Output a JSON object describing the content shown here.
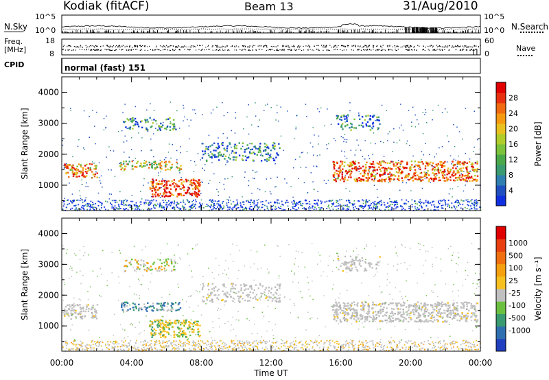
{
  "header": {
    "station": "Kodiak (fitACF)",
    "beam": "Beam 13",
    "date": "31/Aug/2010"
  },
  "noise_panel": {
    "left_label": "N.Sky",
    "right_label": "N.Search",
    "left_ticks": [
      "10^5",
      "10^0"
    ],
    "right_ticks": [
      "10^5",
      "10^0"
    ]
  },
  "freq_panel": {
    "left_label_line1": "Freq.",
    "left_label_line2": "[MHz]",
    "right_label": "Nave",
    "left_ticks": [
      "18",
      "8"
    ],
    "right_ticks": [
      "60",
      "0"
    ]
  },
  "cpid": {
    "label": "CPID",
    "value": "normal (fast) 151"
  },
  "chart_data": [
    {
      "type": "heatmap",
      "parameter": "power",
      "ylabel": "Slant Range [km]",
      "xlabel": "",
      "x_ticks": [
        "00:00",
        "04:00",
        "08:00",
        "12:00",
        "16:00",
        "20:00",
        "00:00"
      ],
      "y_ticks": [
        "1000",
        "2000",
        "3000",
        "4000"
      ],
      "ylim": [
        180,
        4500
      ],
      "xlim_hours": [
        0,
        24
      ],
      "colorbar": {
        "label": "Power [dB]",
        "ticks": [
          "4",
          "8",
          "12",
          "16",
          "20",
          "24",
          "28"
        ],
        "colors": [
          "#1030e0",
          "#2050c0",
          "#2f7fb0",
          "#3a9a70",
          "#4aa84a",
          "#7cc23a",
          "#b0cc2a",
          "#e8c020",
          "#f59a10",
          "#f06a10",
          "#e83010",
          "#e00000"
        ]
      },
      "scatter_regions": [
        {
          "name": "A",
          "hours": [
            0.1,
            2.0
          ],
          "range_km": [
            1250,
            1720
          ],
          "intensity": 0.7
        },
        {
          "name": "B",
          "hours": [
            3.3,
            6.8
          ],
          "range_km": [
            1500,
            1800
          ],
          "intensity": 0.55
        },
        {
          "name": "C",
          "hours": [
            5.0,
            7.9
          ],
          "range_km": [
            650,
            1220
          ],
          "intensity": 0.9
        },
        {
          "name": "D",
          "hours": [
            8.0,
            12.5
          ],
          "range_km": [
            1800,
            2400
          ],
          "intensity": 0.25
        },
        {
          "name": "E",
          "hours": [
            3.5,
            6.5
          ],
          "range_km": [
            2800,
            3200
          ],
          "intensity": 0.3
        },
        {
          "name": "F",
          "hours": [
            15.5,
            23.8
          ],
          "range_km": [
            1150,
            1800
          ],
          "intensity": 0.8
        },
        {
          "name": "G",
          "hours": [
            15.7,
            18.2
          ],
          "range_km": [
            2800,
            3300
          ],
          "intensity": 0.25
        }
      ]
    },
    {
      "type": "heatmap",
      "parameter": "velocity",
      "ylabel": "Slant Range [km]",
      "xlabel": "Time UT",
      "x_ticks": [
        "00:00",
        "04:00",
        "08:00",
        "12:00",
        "16:00",
        "20:00",
        "00:00"
      ],
      "y_ticks": [
        "1000",
        "2000",
        "3000",
        "4000"
      ],
      "ylim": [
        180,
        4500
      ],
      "xlim_hours": [
        0,
        24
      ],
      "colorbar": {
        "label": "Velocity [m s⁻¹]",
        "ticks": [
          "1000",
          "500",
          "100",
          "25",
          "-25",
          "-100",
          "-500",
          "-1000"
        ],
        "colors": [
          "#2040c0",
          "#2f6fb0",
          "#3a9a70",
          "#6cc040",
          "#c0c0c0",
          "#f5c020",
          "#f5a010",
          "#f07010",
          "#e84010",
          "#e00000"
        ]
      }
    }
  ]
}
